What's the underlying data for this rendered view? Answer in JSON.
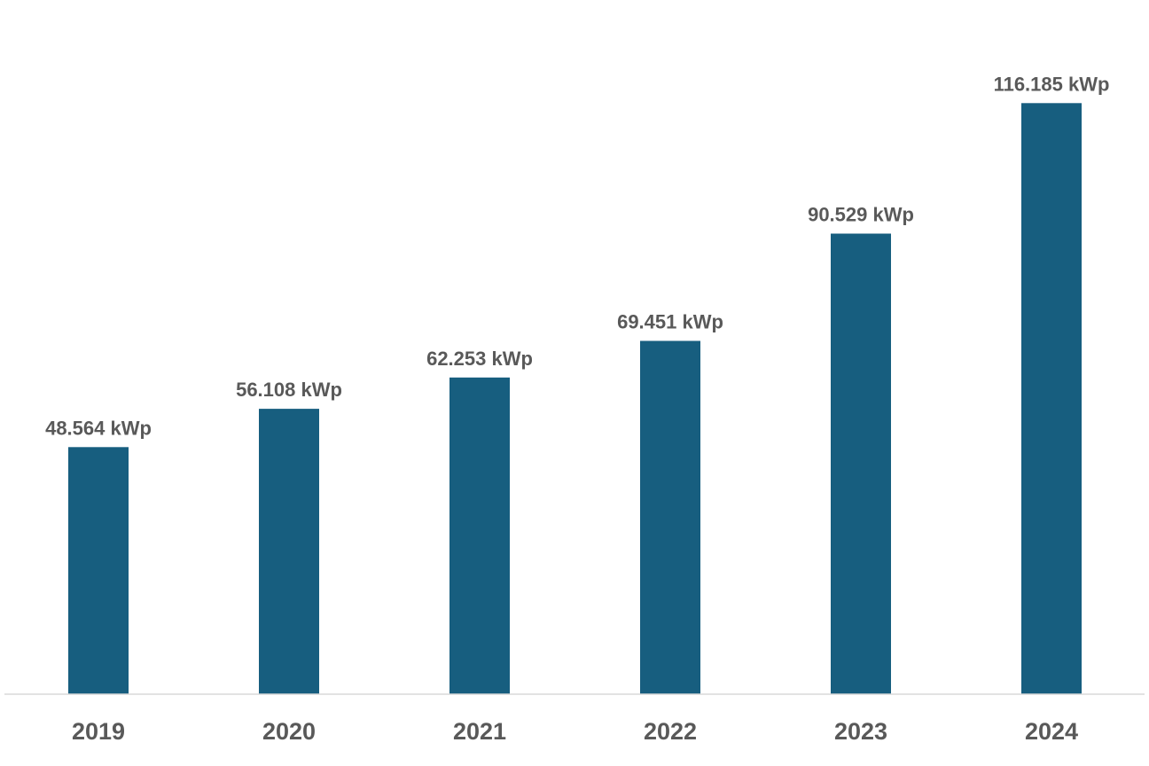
{
  "chart_data": {
    "type": "bar",
    "title": "",
    "xlabel": "",
    "ylabel": "",
    "categories": [
      "2019",
      "2020",
      "2021",
      "2022",
      "2023",
      "2024"
    ],
    "values": [
      48.564,
      56.108,
      62.253,
      69.451,
      90.529,
      116.185
    ],
    "data_labels": [
      "48.564 kWp",
      "56.108 kWp",
      "62.253 kWp",
      "69.451 kWp",
      "90.529 kWp",
      "116.185 kWp"
    ],
    "unit": "kWp",
    "ylim": [
      0,
      130
    ],
    "grid": false,
    "legend": "none",
    "colors": {
      "bar": "#175e7f",
      "label": "#595959",
      "axis": "#d9d9d9"
    }
  }
}
